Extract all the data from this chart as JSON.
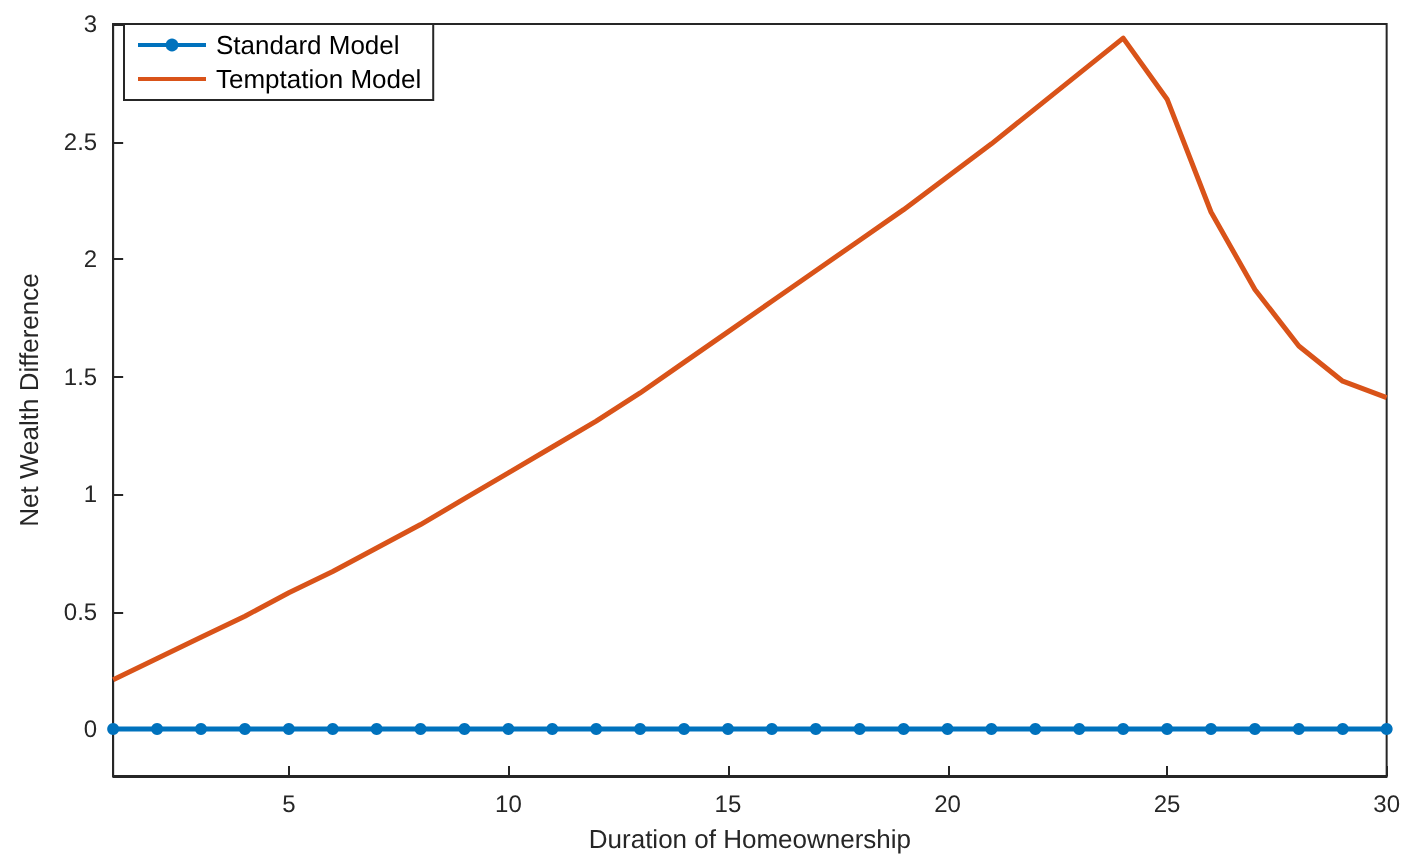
{
  "chart_data": {
    "type": "line",
    "xlabel": "Duration of Homeownership",
    "ylabel": "Net Wealth Difference",
    "x": [
      1,
      2,
      3,
      4,
      5,
      6,
      7,
      8,
      9,
      10,
      11,
      12,
      13,
      14,
      15,
      16,
      17,
      18,
      19,
      20,
      21,
      22,
      23,
      24,
      25,
      26,
      27,
      28,
      29,
      30
    ],
    "series": [
      {
        "name": "Standard Model",
        "color": "#0072bd",
        "marker": "circle",
        "values": [
          0,
          0,
          0,
          0,
          0,
          0,
          0,
          0,
          0,
          0,
          0,
          0,
          0,
          0,
          0,
          0,
          0,
          0,
          0,
          0,
          0,
          0,
          0,
          0,
          0,
          0,
          0,
          0,
          0,
          0
        ]
      },
      {
        "name": "Temptation Model",
        "color": "#d95319",
        "marker": "none",
        "values": [
          0.21,
          0.3,
          0.39,
          0.48,
          0.58,
          0.67,
          0.77,
          0.87,
          0.98,
          1.09,
          1.2,
          1.31,
          1.43,
          1.56,
          1.69,
          1.82,
          1.95,
          2.08,
          2.21,
          2.35,
          2.49,
          2.64,
          2.79,
          2.94,
          2.68,
          2.2,
          1.87,
          1.63,
          1.48,
          1.41
        ]
      }
    ],
    "xlim": [
      1,
      30
    ],
    "xticks": [
      5,
      10,
      15,
      20,
      25,
      30
    ],
    "ylim": [
      -0.2,
      3
    ],
    "yticks": [
      0,
      0.5,
      1,
      1.5,
      2,
      2.5,
      3
    ],
    "grid": false,
    "legend": "top left"
  }
}
